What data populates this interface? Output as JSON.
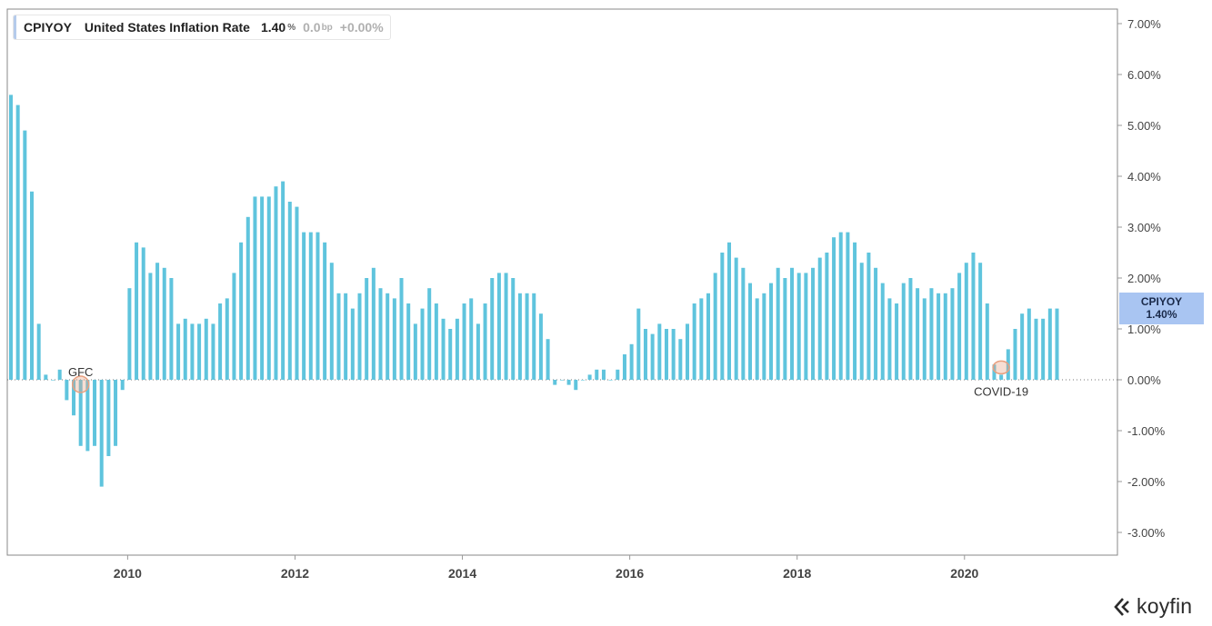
{
  "legend": {
    "ticker": "CPIYOY",
    "title": "United States Inflation Rate",
    "value": "1.40",
    "value_unit": "%",
    "change_bp": "0.0",
    "change_bp_unit": "bp",
    "change_pct": "+0.00%"
  },
  "price_tag": {
    "ticker": "CPIYOY",
    "value": "1.40%"
  },
  "brand": "koyfin",
  "colors": {
    "bar": "#5fc4dd",
    "tag": "#a9c5f2",
    "annotation": "#e8a080",
    "grid": "#999999"
  },
  "chart_data": {
    "type": "bar",
    "title": "United States Inflation Rate",
    "series_name": "CPIYOY",
    "start": "2008-08",
    "frequency": "monthly",
    "ylim": [
      -3.5,
      7.3
    ],
    "y_ticks": [
      7,
      6,
      5,
      4,
      3,
      2,
      1,
      0,
      -1,
      -2,
      -3
    ],
    "y_tick_labels": [
      "7.00%",
      "6.00%",
      "5.00%",
      "4.00%",
      "3.00%",
      "2.00%",
      "1.00%",
      "0.00%",
      "-1.00%",
      "-2.00%",
      "-3.00%"
    ],
    "x_ticks": [
      "2010",
      "2012",
      "2014",
      "2016",
      "2018",
      "2020"
    ],
    "values": [
      5.6,
      5.4,
      4.9,
      3.7,
      1.1,
      0.1,
      0.0,
      0.2,
      -0.4,
      -0.7,
      -1.3,
      -1.4,
      -1.3,
      -2.1,
      -1.5,
      -1.3,
      -0.2,
      1.8,
      2.7,
      2.6,
      2.1,
      2.3,
      2.2,
      2.0,
      1.1,
      1.2,
      1.1,
      1.1,
      1.2,
      1.1,
      1.5,
      1.6,
      2.1,
      2.7,
      3.2,
      3.6,
      3.6,
      3.6,
      3.8,
      3.9,
      3.5,
      3.4,
      2.9,
      2.9,
      2.9,
      2.7,
      2.3,
      1.7,
      1.7,
      1.4,
      1.7,
      2.0,
      2.2,
      1.8,
      1.7,
      1.6,
      2.0,
      1.5,
      1.1,
      1.4,
      1.8,
      1.5,
      1.2,
      1.0,
      1.2,
      1.5,
      1.6,
      1.1,
      1.5,
      2.0,
      2.1,
      2.1,
      2.0,
      1.7,
      1.7,
      1.7,
      1.3,
      0.8,
      -0.1,
      0.0,
      -0.1,
      -0.2,
      0.0,
      0.1,
      0.2,
      0.2,
      0.0,
      0.2,
      0.5,
      0.7,
      1.4,
      1.0,
      0.9,
      1.1,
      1.0,
      1.0,
      0.8,
      1.1,
      1.5,
      1.6,
      1.7,
      2.1,
      2.5,
      2.7,
      2.4,
      2.2,
      1.9,
      1.6,
      1.7,
      1.9,
      2.2,
      2.0,
      2.2,
      2.1,
      2.1,
      2.2,
      2.4,
      2.5,
      2.8,
      2.9,
      2.9,
      2.7,
      2.3,
      2.5,
      2.2,
      1.9,
      1.6,
      1.5,
      1.9,
      2.0,
      1.8,
      1.6,
      1.8,
      1.7,
      1.7,
      1.8,
      2.1,
      2.3,
      2.5,
      2.3,
      1.5,
      0.3,
      0.1,
      0.6,
      1.0,
      1.3,
      1.4,
      1.2,
      1.2,
      1.4,
      1.4
    ],
    "annotations": [
      {
        "label": "GFC",
        "date": "2009-06",
        "value": 0.0
      },
      {
        "label": "COVID-19",
        "date": "2020-06",
        "value": 0.1
      }
    ]
  }
}
